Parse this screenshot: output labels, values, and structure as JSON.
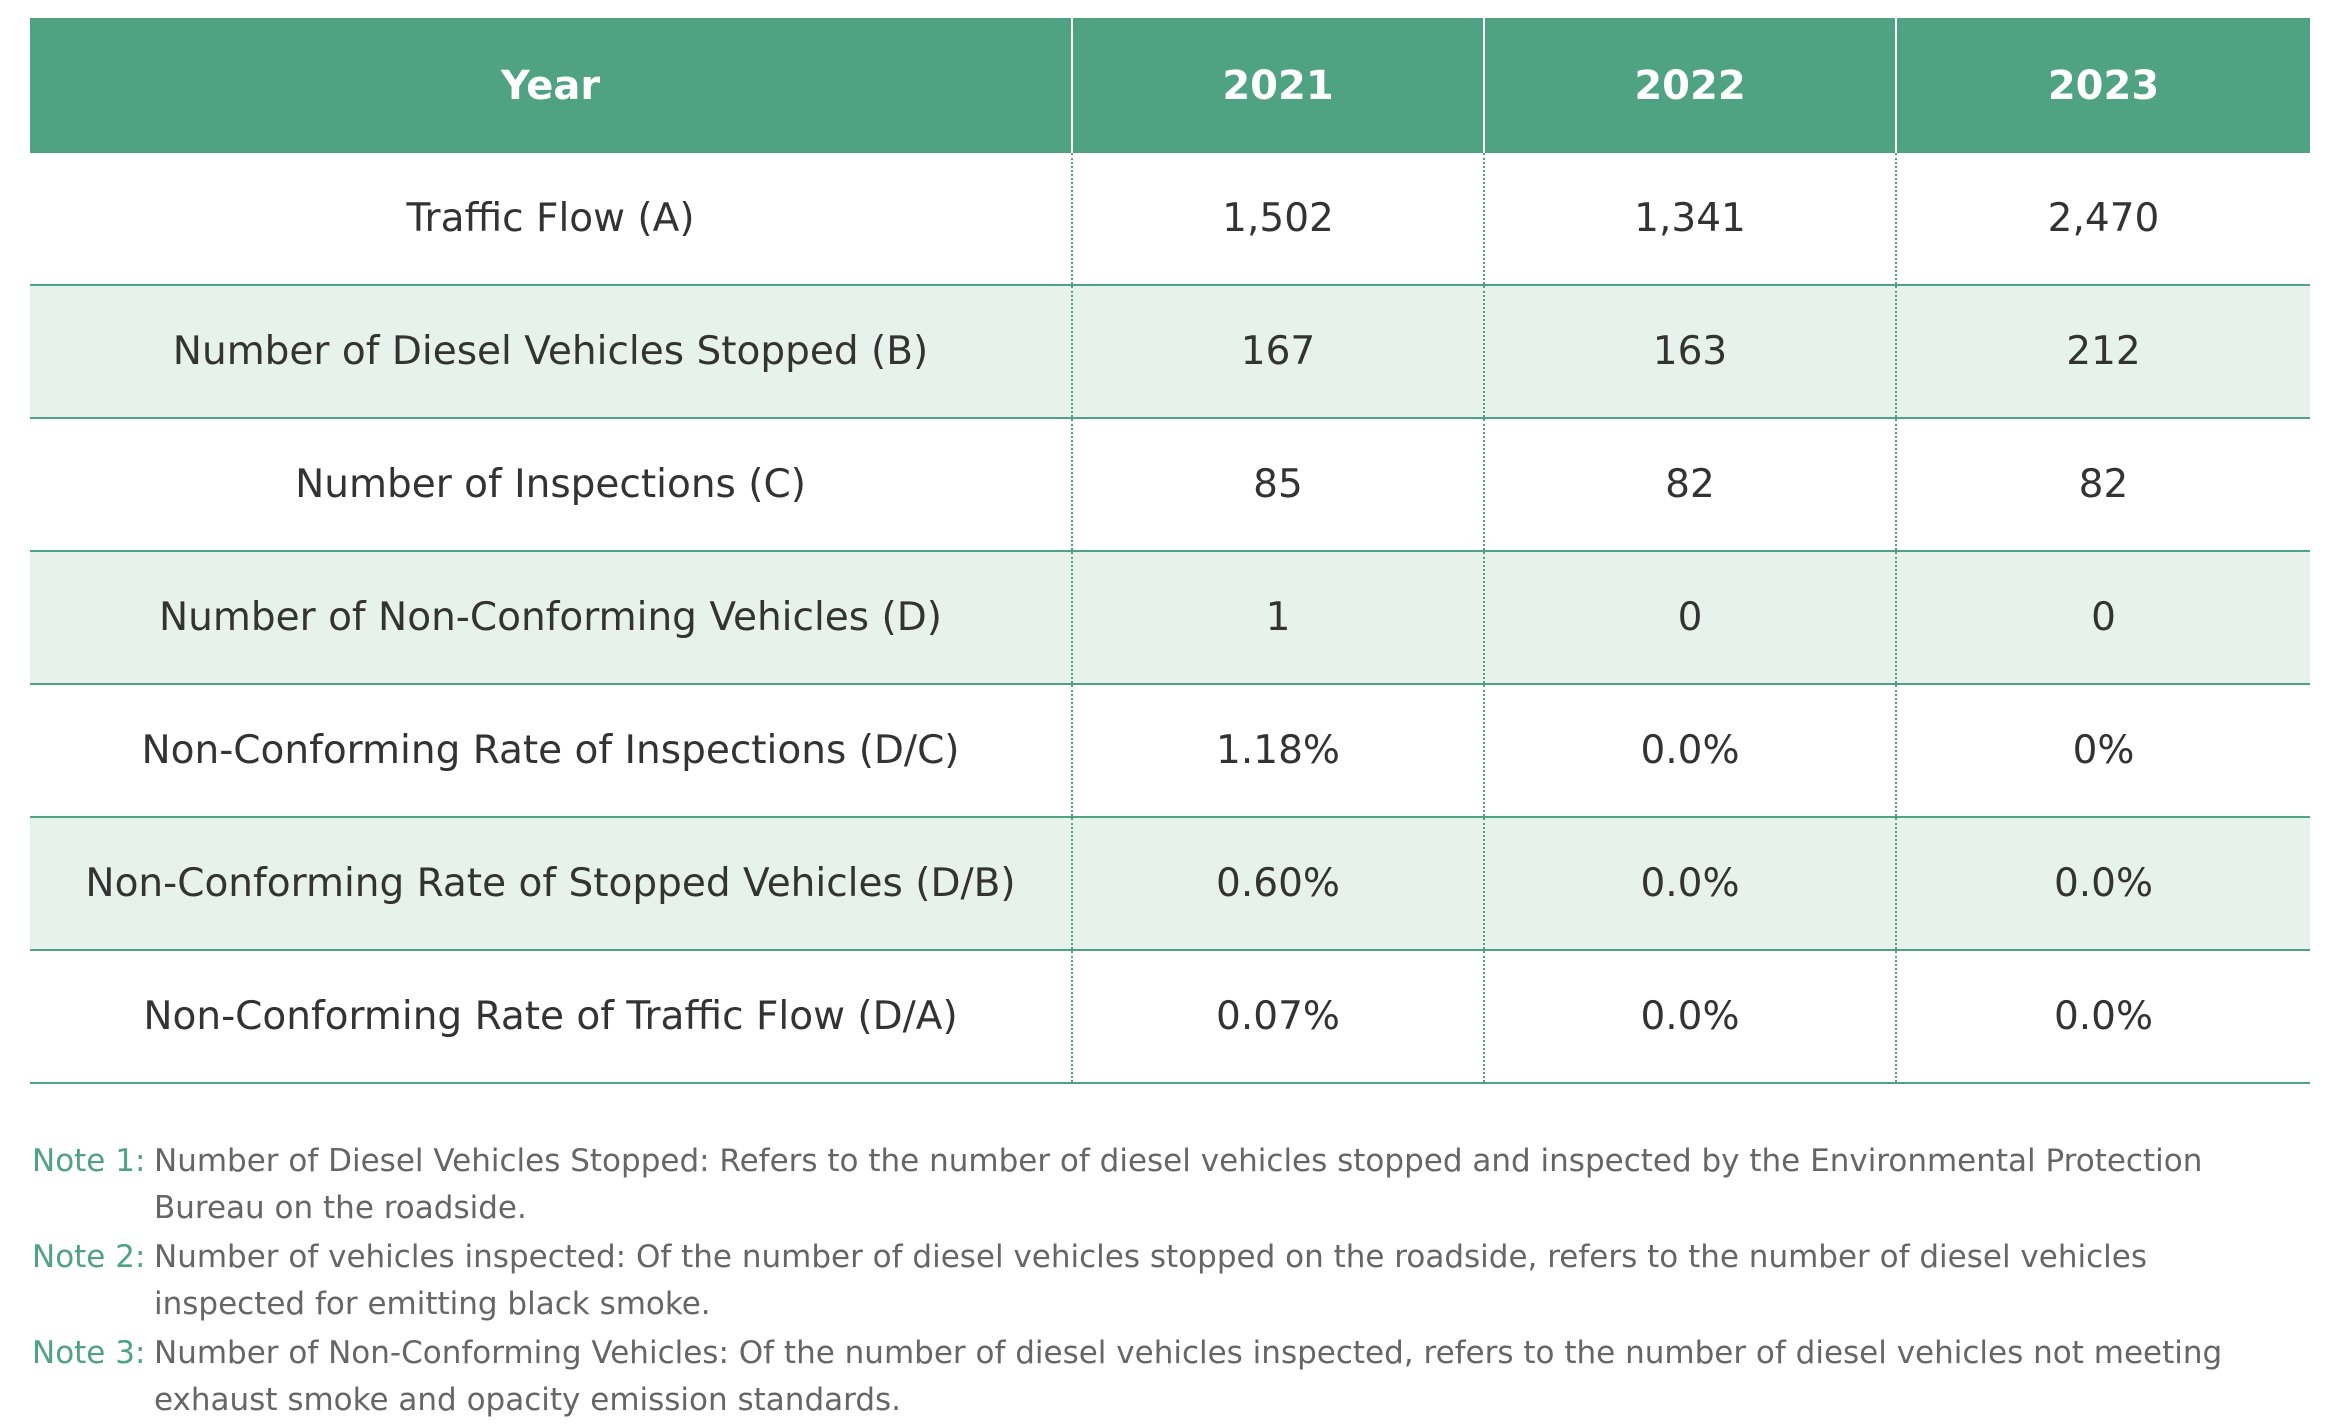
{
  "table": {
    "headers": [
      "Year",
      "2021",
      "2022",
      "2023"
    ],
    "rows": [
      {
        "label": "Traffic Flow (A)",
        "values": [
          "1,502",
          "1,341",
          "2,470"
        ]
      },
      {
        "label": "Number of Diesel Vehicles Stopped (B)",
        "values": [
          "167",
          "163",
          "212"
        ]
      },
      {
        "label": "Number of Inspections (C)",
        "values": [
          "85",
          "82",
          "82"
        ]
      },
      {
        "label": "Number of Non-Conforming Vehicles (D)",
        "values": [
          "1",
          "0",
          "0"
        ]
      },
      {
        "label": "Non-Conforming Rate of Inspections (D/C)",
        "values": [
          "1.18%",
          "0.0%",
          "0%"
        ]
      },
      {
        "label": "Non-Conforming Rate of Stopped Vehicles (D/B)",
        "values": [
          "0.60%",
          "0.0%",
          "0.0%"
        ]
      },
      {
        "label": "Non-Conforming Rate of Traffic Flow (D/A)",
        "values": [
          "0.07%",
          "0.0%",
          "0.0%"
        ]
      }
    ]
  },
  "notes": [
    {
      "label": "Note 1:",
      "text": "Number of Diesel Vehicles Stopped: Refers to the number of diesel vehicles stopped and inspected by the Environmental Protection Bureau on the roadside."
    },
    {
      "label": "Note 2:",
      "text": "Number of vehicles inspected: Of the number of diesel vehicles stopped on the roadside, refers to the number of diesel vehicles inspected for emitting black smoke."
    },
    {
      "label": "Note 3:",
      "text": "Number of Non-Conforming Vehicles: Of the number of diesel vehicles inspected, refers to the number of diesel vehicles not meeting exhaust smoke and opacity emission standards."
    }
  ],
  "colors": {
    "header_bg": "#4fa382",
    "stripe_bg": "#e8f2ed",
    "note_label": "#4fa382"
  }
}
